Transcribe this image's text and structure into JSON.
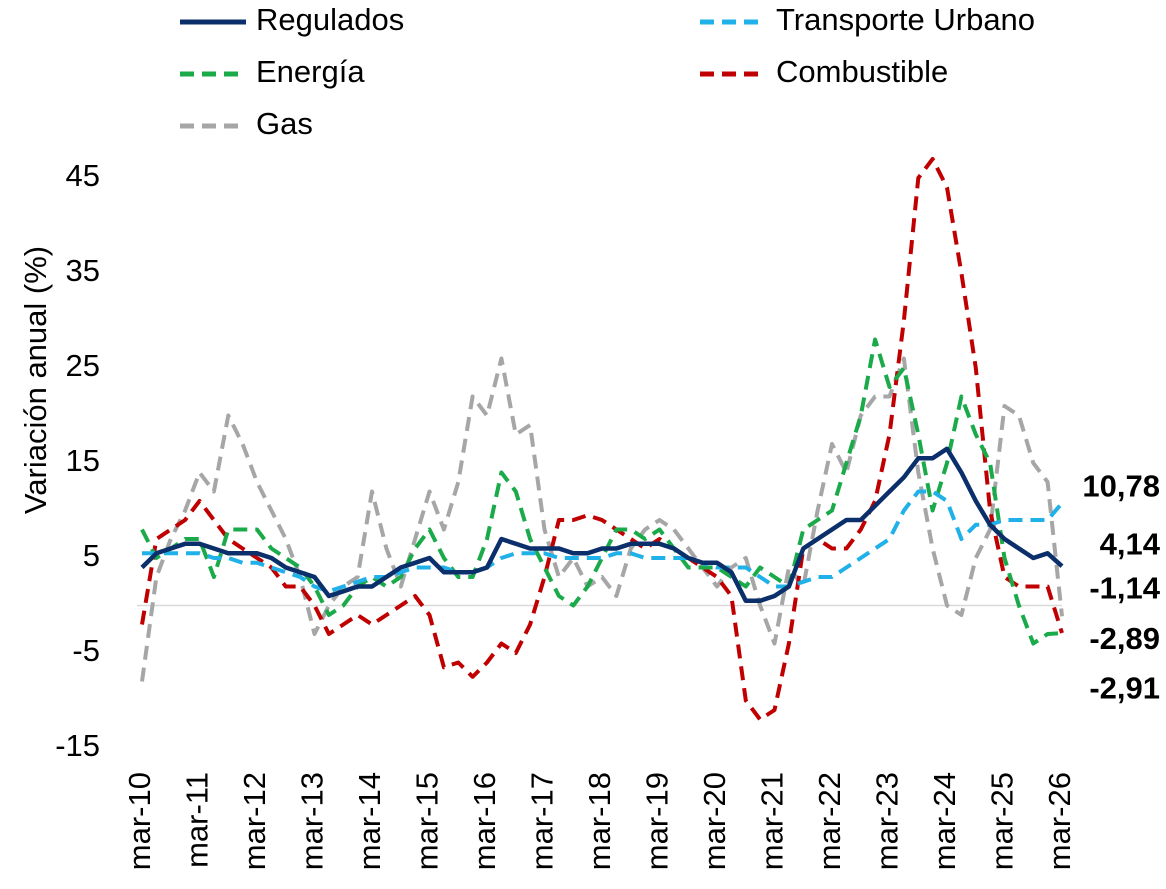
{
  "chart_data": {
    "type": "line",
    "y_label": "Variación anual (%)",
    "categories": [
      "mar-10",
      null,
      null,
      null,
      "mar-11",
      null,
      null,
      null,
      "mar-12",
      null,
      null,
      null,
      "mar-13",
      null,
      null,
      null,
      "mar-14",
      null,
      null,
      null,
      "mar-15",
      null,
      null,
      null,
      "mar-16",
      null,
      null,
      null,
      "mar-17",
      null,
      null,
      null,
      "mar-18",
      null,
      null,
      null,
      "mar-19",
      null,
      null,
      null,
      "mar-20",
      null,
      null,
      null,
      "mar-21",
      null,
      null,
      null,
      "mar-22",
      null,
      null,
      null,
      "mar-23",
      null,
      null,
      null,
      "mar-24",
      null,
      null,
      null,
      "mar-25",
      null,
      null,
      null,
      "mar-26"
    ],
    "ylim": [
      -15,
      45
    ],
    "yticks": [
      -15,
      -5,
      5,
      15,
      25,
      35,
      45
    ],
    "zero_line": true,
    "legend": "top",
    "series": [
      {
        "name": "Regulados",
        "color": "#0b2f6b",
        "style": "solid",
        "end_label": "4,14",
        "values": [
          4,
          5.5,
          6,
          6.5,
          6.5,
          6,
          5.5,
          5.5,
          5.5,
          5,
          4,
          3.5,
          3,
          1,
          1.5,
          2,
          2,
          3,
          4,
          4.5,
          5,
          3.5,
          3.5,
          3.5,
          4,
          7,
          6.5,
          6,
          6,
          6,
          5.5,
          5.5,
          6,
          6,
          6.5,
          6.5,
          6.5,
          6,
          5,
          4.5,
          4.5,
          3.5,
          0.5,
          0.5,
          1,
          2,
          6,
          7,
          8,
          9,
          9,
          10.5,
          12,
          13.5,
          15.5,
          15.5,
          16.5,
          14,
          11,
          8.5,
          7,
          6,
          5,
          5.5,
          4.14
        ]
      },
      {
        "name": "Transporte Urbano",
        "color": "#1fb1e8",
        "style": "dashed",
        "end_label": "10,78",
        "values": [
          5.5,
          5.5,
          5.5,
          5.5,
          5.5,
          5,
          5,
          4.5,
          4.5,
          4,
          3.5,
          3,
          2,
          1.5,
          2,
          2.5,
          3,
          3,
          3.5,
          4,
          4,
          4,
          3.5,
          3.5,
          4,
          5,
          5.5,
          5.5,
          5.5,
          5,
          5,
          5,
          5,
          5.5,
          5.5,
          5,
          5,
          5,
          5,
          4.5,
          4,
          4,
          4,
          3,
          2,
          2,
          2.5,
          3,
          3,
          4,
          5,
          6,
          7,
          10,
          12,
          12,
          11,
          7,
          8.5,
          8.5,
          9,
          9,
          9,
          9,
          10.78
        ]
      },
      {
        "name": "Energía",
        "color": "#1aaa4a",
        "style": "dashed",
        "end_label": "-2,91",
        "values": [
          8,
          5,
          6,
          7,
          7,
          3,
          8,
          8,
          8,
          6,
          5,
          4,
          2,
          -1,
          0,
          2,
          3,
          2,
          3,
          6,
          8,
          5,
          3,
          3,
          7,
          14,
          12,
          7,
          4,
          1,
          0,
          2,
          5,
          8,
          8,
          7,
          8,
          6,
          4,
          4,
          4,
          3,
          2,
          4,
          3,
          2,
          8,
          9,
          10,
          15,
          20,
          28,
          23,
          25,
          18,
          10,
          15,
          22,
          18,
          15,
          5,
          0,
          -4,
          -3,
          -2.91
        ]
      },
      {
        "name": "Combustible",
        "color": "#c00000",
        "style": "dashed",
        "end_label": "-2,89",
        "values": [
          -2,
          7,
          8,
          9,
          11,
          9,
          7,
          6,
          5,
          4,
          2,
          2,
          0,
          -3,
          -2,
          -1,
          -2,
          -1,
          0,
          1,
          -1,
          -6.5,
          -6,
          -7.5,
          -6,
          -4,
          -5,
          -2,
          3,
          9,
          9,
          9.5,
          9,
          8,
          7,
          6,
          7,
          6,
          5,
          4,
          3,
          1,
          -10,
          -12,
          -11,
          -4,
          6,
          7,
          6,
          6,
          8,
          11,
          18,
          30,
          45,
          47,
          44,
          35,
          25,
          10,
          3,
          2,
          2,
          2,
          -2.89
        ]
      },
      {
        "name": "Gas",
        "color": "#a6a6a6",
        "style": "dashed",
        "end_label": "-1,14",
        "values": [
          -8,
          3,
          7,
          10,
          14,
          12,
          20,
          17,
          13,
          10,
          7,
          3,
          -3,
          0,
          2,
          3,
          12,
          6,
          2,
          7,
          12,
          8,
          13,
          22,
          20,
          26,
          18,
          19,
          8,
          3,
          5,
          2,
          3,
          1,
          6,
          8,
          9,
          8,
          6,
          4,
          2,
          4,
          5,
          0,
          -4,
          4,
          2,
          10,
          17,
          14,
          20,
          22,
          22,
          26,
          14,
          6,
          0,
          -1,
          5,
          8,
          21,
          20,
          15,
          13,
          -1.14
        ]
      }
    ]
  }
}
